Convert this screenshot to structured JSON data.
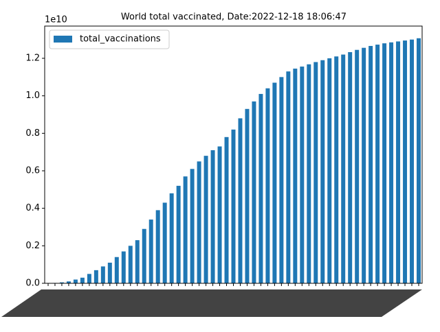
{
  "chart_data": {
    "type": "bar",
    "title": "World total vaccinated, Date:2022-12-18 18:06:47",
    "y_offset_label": "1e10",
    "categories": [
      null,
      null,
      null,
      null,
      null,
      null,
      null,
      null,
      null,
      null,
      null,
      null,
      null,
      null,
      null,
      null,
      null,
      null,
      null,
      null,
      null,
      null,
      null,
      null,
      null,
      null,
      null,
      null,
      null,
      null,
      null,
      null,
      null,
      null,
      null,
      null,
      null,
      null,
      null,
      null,
      null,
      null,
      null,
      null,
      null,
      null,
      null,
      null,
      null,
      null,
      null,
      null,
      null,
      null,
      null
    ],
    "series": [
      {
        "name": "total_vaccinations",
        "color": "#1f77b4",
        "values": [
          0.0,
          0.002,
          0.005,
          0.01,
          0.02,
          0.03,
          0.05,
          0.07,
          0.09,
          0.11,
          0.14,
          0.17,
          0.2,
          0.23,
          0.29,
          0.34,
          0.39,
          0.43,
          0.48,
          0.52,
          0.57,
          0.61,
          0.65,
          0.68,
          0.71,
          0.73,
          0.78,
          0.82,
          0.88,
          0.93,
          0.97,
          1.01,
          1.04,
          1.07,
          1.1,
          1.13,
          1.145,
          1.156,
          1.168,
          1.18,
          1.19,
          1.2,
          1.21,
          1.22,
          1.233,
          1.245,
          1.256,
          1.266,
          1.273,
          1.28,
          1.285,
          1.29,
          1.295,
          1.3,
          1.307
        ]
      }
    ],
    "ylim": [
      0,
      1.372
    ],
    "yticks": [
      {
        "value": 0,
        "label": "0.0"
      },
      0.2,
      0.4,
      0.6,
      0.8,
      {
        "value": 1,
        "label": "1.0"
      },
      1.2
    ],
    "legend": "upper left"
  }
}
